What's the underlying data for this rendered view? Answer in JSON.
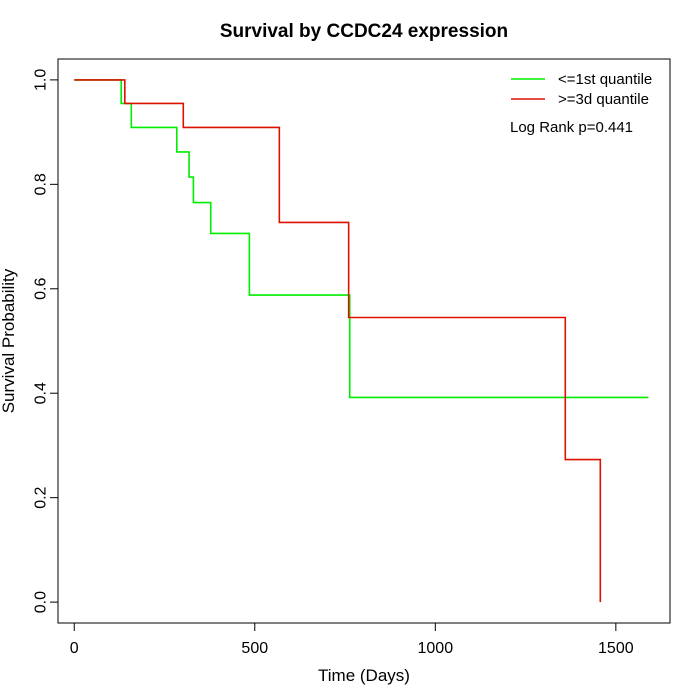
{
  "chart_data": {
    "type": "line",
    "title": "Survival by CCDC24 expression",
    "xlabel": "Time (Days)",
    "ylabel": "Survival Probability",
    "xlim": [
      -45,
      1650
    ],
    "ylim": [
      -0.04,
      1.04
    ],
    "x_ticks": [
      0,
      500,
      1000,
      1500
    ],
    "x_tick_labels": [
      "0",
      "500",
      "1000",
      "1500"
    ],
    "y_ticks": [
      0.0,
      0.2,
      0.4,
      0.6,
      0.8,
      1.0
    ],
    "y_tick_labels": [
      "0.0",
      "0.2",
      "0.4",
      "0.6",
      "0.8",
      "1.0"
    ],
    "grid": false,
    "legend_position": "top-right",
    "annotation": "Log Rank p=0.441",
    "series": [
      {
        "name": "<=1st quantile",
        "color": "#00ee00",
        "steps": [
          [
            0,
            1.0
          ],
          [
            130,
            0.955
          ],
          [
            158,
            0.909
          ],
          [
            284,
            0.862
          ],
          [
            318,
            0.814
          ],
          [
            330,
            0.765
          ],
          [
            378,
            0.706
          ],
          [
            485,
            0.588
          ],
          [
            763,
            0.392
          ],
          [
            1590,
            0.392
          ]
        ]
      },
      {
        "name": ">=3d quantile",
        "color": "#dd1100",
        "steps": [
          [
            0,
            1.0
          ],
          [
            140,
            0.955
          ],
          [
            302,
            0.909
          ],
          [
            568,
            0.727
          ],
          [
            760,
            0.545
          ],
          [
            1360,
            0.273
          ],
          [
            1457,
            0.0
          ]
        ]
      }
    ]
  }
}
